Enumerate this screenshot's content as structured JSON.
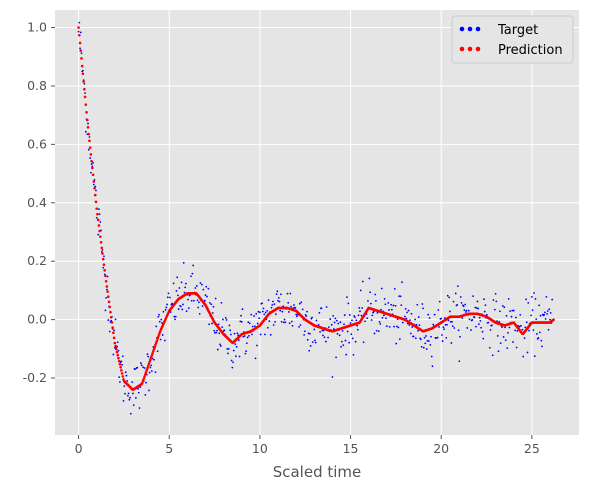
{
  "chart_data": {
    "type": "scatter",
    "title": "",
    "xlabel": "Scaled time",
    "ylabel": "",
    "xlim": [
      -1.3,
      27.6
    ],
    "ylim": [
      -0.395,
      1.06
    ],
    "xticks": [
      0,
      5,
      10,
      15,
      20,
      25
    ],
    "yticks": [
      -0.2,
      0.0,
      0.2,
      0.4,
      0.6,
      0.8,
      1.0
    ],
    "grid": true,
    "legend_position": "top-right",
    "x_range": [
      0,
      26.2
    ],
    "sample_step": 0.04,
    "target_noise_std": 0.045,
    "series": [
      {
        "name": "Target",
        "color": "#0000ff",
        "marker": "point",
        "description_of_values": "noisy samples around the prediction curve"
      },
      {
        "name": "Prediction",
        "color": "#ff0000",
        "marker": "point",
        "x": [
          0,
          0.5,
          1.0,
          1.5,
          2.0,
          2.5,
          3.0,
          3.5,
          4.0,
          4.5,
          5.0,
          5.5,
          6.0,
          6.5,
          7.0,
          7.5,
          8.0,
          8.5,
          9.0,
          9.5,
          10.0,
          10.5,
          11.0,
          11.5,
          12.0,
          12.5,
          13.0,
          13.5,
          14.0,
          14.5,
          15.0,
          15.5,
          16.0,
          16.5,
          17.0,
          17.5,
          18.0,
          18.5,
          19.0,
          19.5,
          20.0,
          20.5,
          21.0,
          21.5,
          22.0,
          22.5,
          23.0,
          23.5,
          24.0,
          24.5,
          25.0,
          25.5,
          26.0,
          26.2
        ],
        "y": [
          1.0,
          0.67,
          0.38,
          0.14,
          -0.08,
          -0.21,
          -0.24,
          -0.22,
          -0.13,
          -0.04,
          0.03,
          0.07,
          0.09,
          0.09,
          0.05,
          -0.01,
          -0.05,
          -0.08,
          -0.05,
          -0.04,
          -0.02,
          0.02,
          0.04,
          0.04,
          0.03,
          0.0,
          -0.02,
          -0.03,
          -0.04,
          -0.03,
          -0.02,
          -0.01,
          0.04,
          0.03,
          0.02,
          0.01,
          0.0,
          -0.02,
          -0.04,
          -0.03,
          -0.01,
          0.01,
          0.01,
          0.02,
          0.02,
          0.01,
          -0.01,
          -0.02,
          -0.01,
          -0.05,
          -0.01,
          -0.01,
          -0.01,
          0.0
        ]
      }
    ]
  }
}
